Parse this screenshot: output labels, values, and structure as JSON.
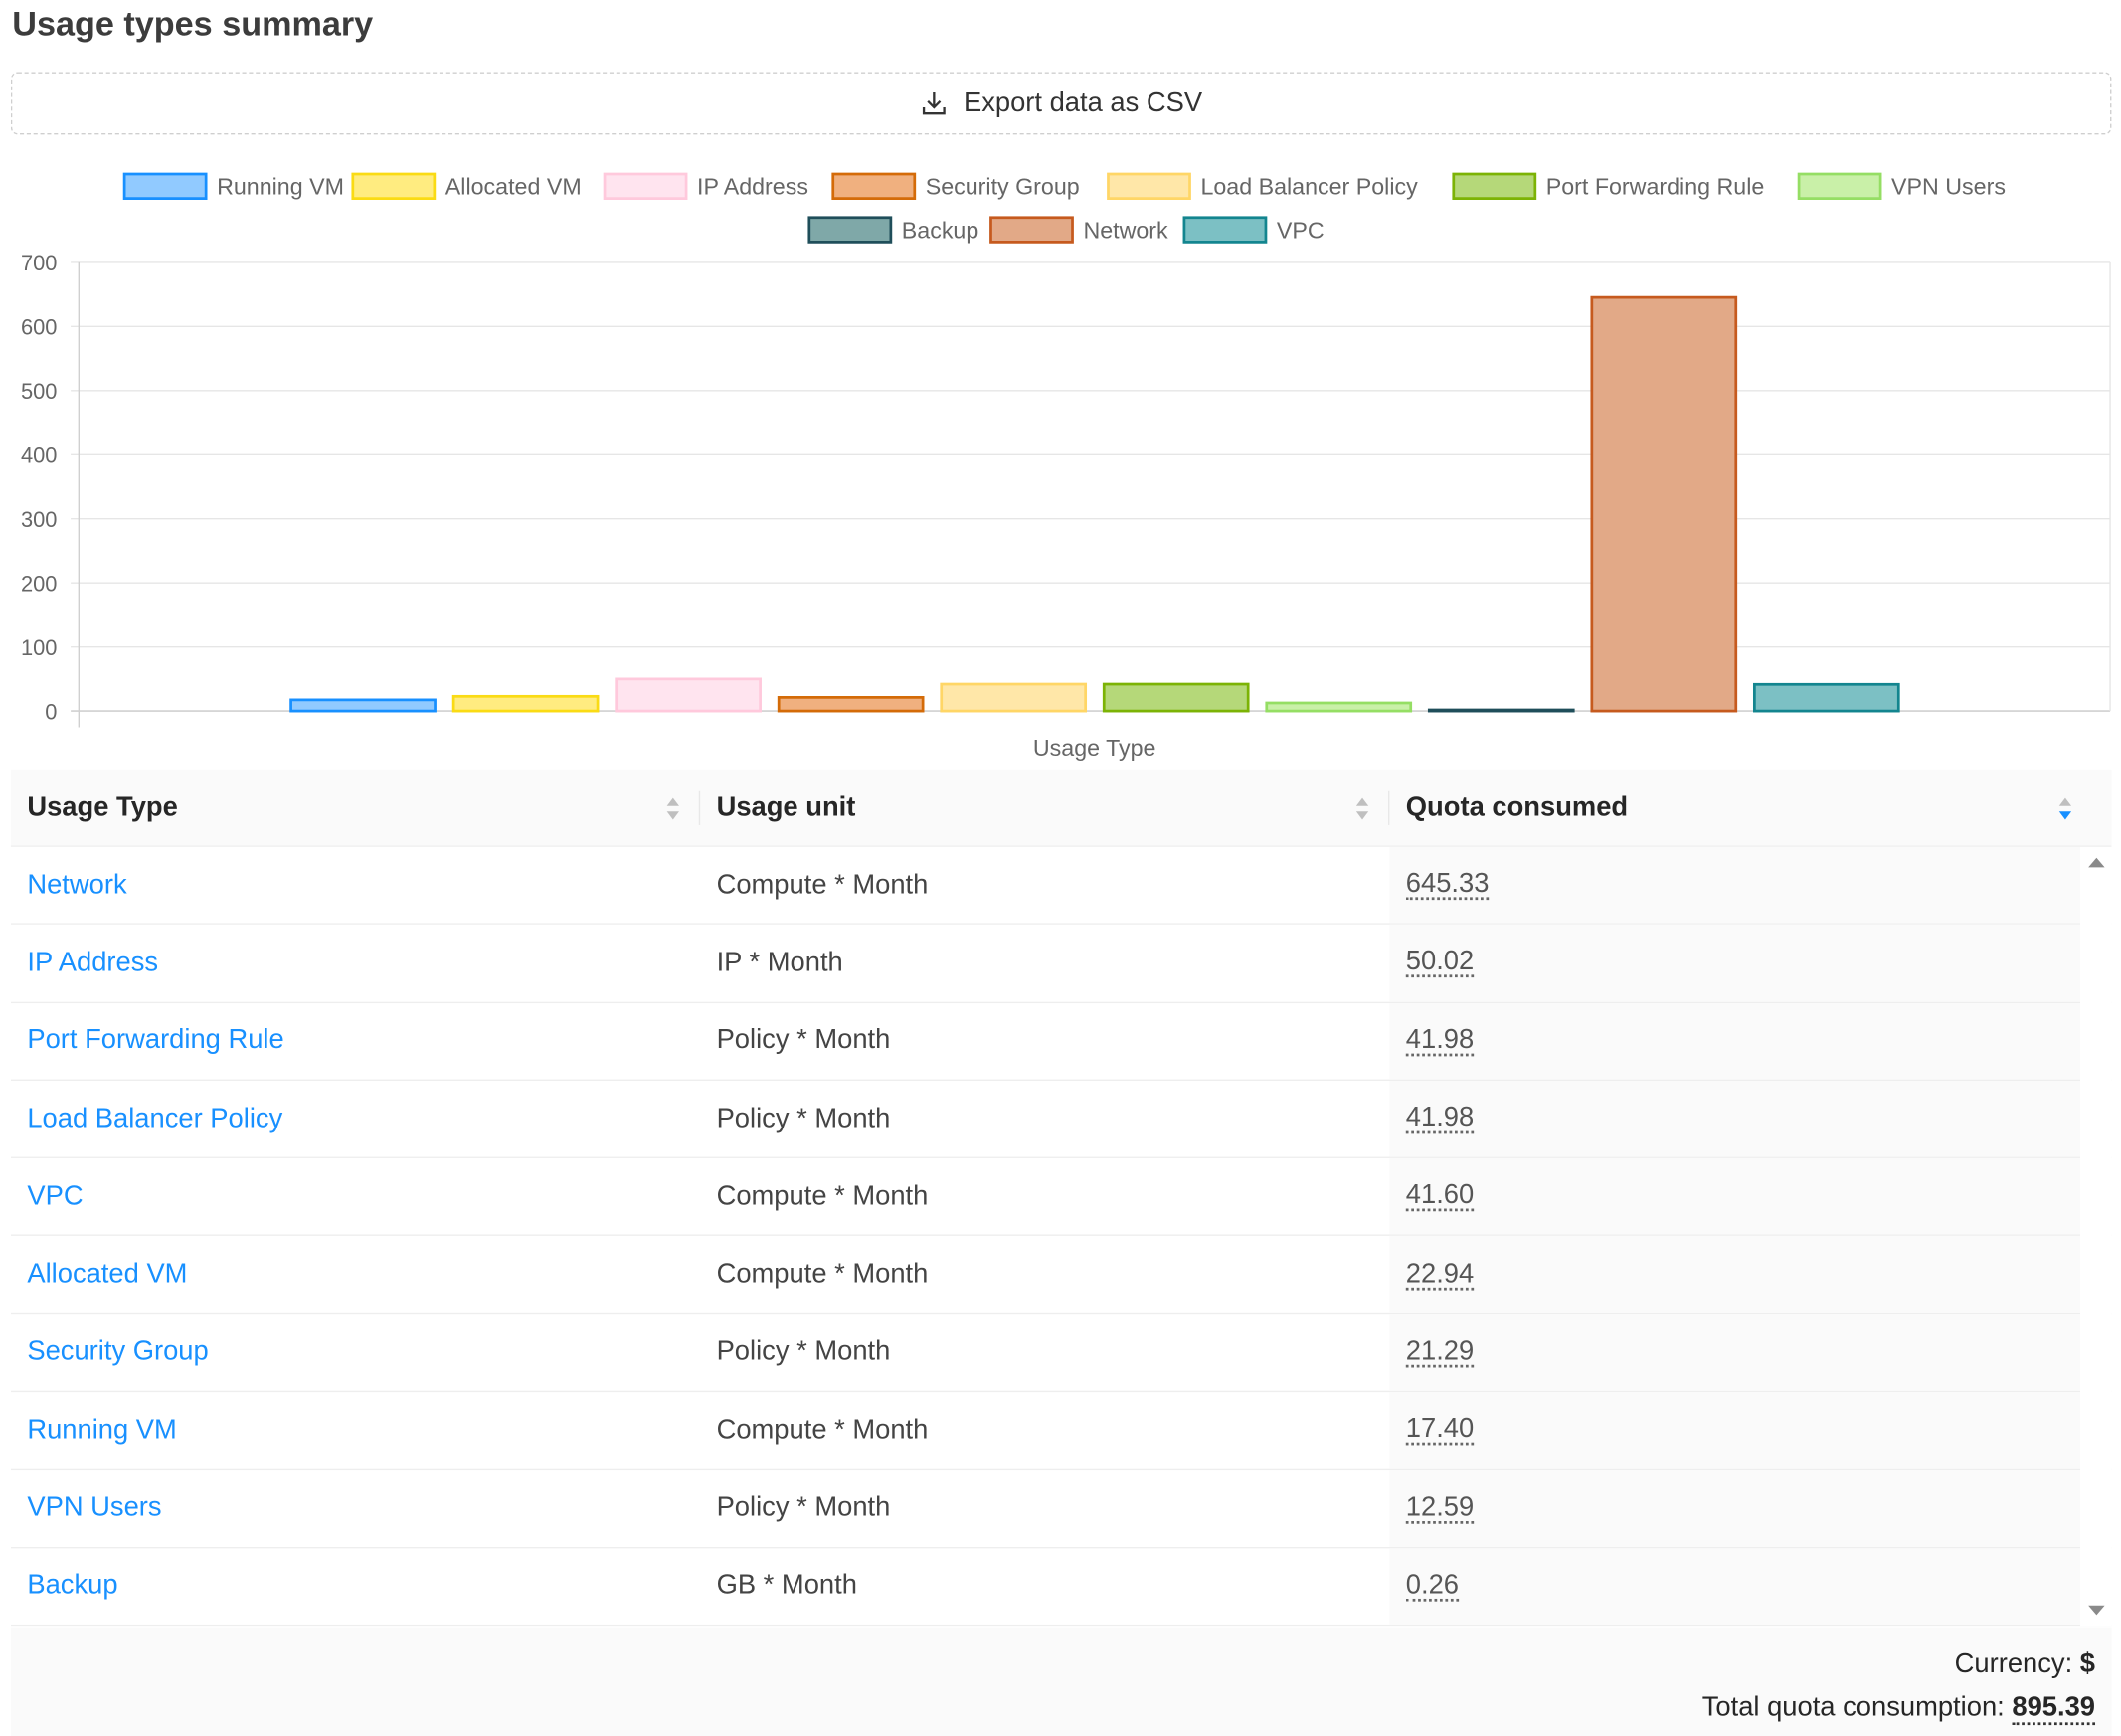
{
  "page": {
    "title": "Usage types summary"
  },
  "export": {
    "label": "Export data as CSV",
    "icon": "download-icon"
  },
  "chart_data": {
    "type": "bar",
    "xlabel": "Usage Type",
    "ylabel": "",
    "ylim": [
      0,
      700
    ],
    "yticks": [
      0,
      100,
      200,
      300,
      400,
      500,
      600,
      700
    ],
    "grid": true,
    "legend_position": "top",
    "series": [
      {
        "name": "Running VM",
        "value": 17.4,
        "fill": "#91caff",
        "stroke": "#1890ff"
      },
      {
        "name": "Allocated VM",
        "value": 22.94,
        "fill": "#ffec80",
        "stroke": "#fadb14"
      },
      {
        "name": "IP Address",
        "value": 50.02,
        "fill": "#ffe4ef",
        "stroke": "#ffc9dc"
      },
      {
        "name": "Security Group",
        "value": 21.29,
        "fill": "#f0b07f",
        "stroke": "#d46b08"
      },
      {
        "name": "Load Balancer Policy",
        "value": 41.98,
        "fill": "#ffe7a8",
        "stroke": "#ffd666"
      },
      {
        "name": "Port Forwarding Rule",
        "value": 41.98,
        "fill": "#b5d879",
        "stroke": "#7cb305"
      },
      {
        "name": "VPN Users",
        "value": 12.59,
        "fill": "#c9f0a8",
        "stroke": "#95de64"
      },
      {
        "name": "Backup",
        "value": 0.26,
        "fill": "#7fa8a8",
        "stroke": "#1f4e5a"
      },
      {
        "name": "Network",
        "value": 645.33,
        "fill": "#e2a987",
        "stroke": "#c65a1e"
      },
      {
        "name": "VPC",
        "value": 41.6,
        "fill": "#7cc0c4",
        "stroke": "#13858f"
      }
    ]
  },
  "table": {
    "columns": [
      "Usage Type",
      "Usage unit",
      "Quota consumed"
    ],
    "rows": [
      {
        "type": "Network",
        "unit": "Compute * Month",
        "quota": "645.33"
      },
      {
        "type": "IP Address",
        "unit": "IP * Month",
        "quota": "50.02"
      },
      {
        "type": "Port Forwarding Rule",
        "unit": "Policy * Month",
        "quota": "41.98"
      },
      {
        "type": "Load Balancer Policy",
        "unit": "Policy * Month",
        "quota": "41.98"
      },
      {
        "type": "VPC",
        "unit": "Compute * Month",
        "quota": "41.60"
      },
      {
        "type": "Allocated VM",
        "unit": "Compute * Month",
        "quota": "22.94"
      },
      {
        "type": "Security Group",
        "unit": "Policy * Month",
        "quota": "21.29"
      },
      {
        "type": "Running VM",
        "unit": "Compute * Month",
        "quota": "17.40"
      },
      {
        "type": "VPN Users",
        "unit": "Policy * Month",
        "quota": "12.59"
      },
      {
        "type": "Backup",
        "unit": "GB * Month",
        "quota": "0.26"
      }
    ]
  },
  "footer": {
    "currency_label": "Currency:",
    "currency_value": "$",
    "total_label": "Total quota consumption:",
    "total_value": "895.39"
  }
}
